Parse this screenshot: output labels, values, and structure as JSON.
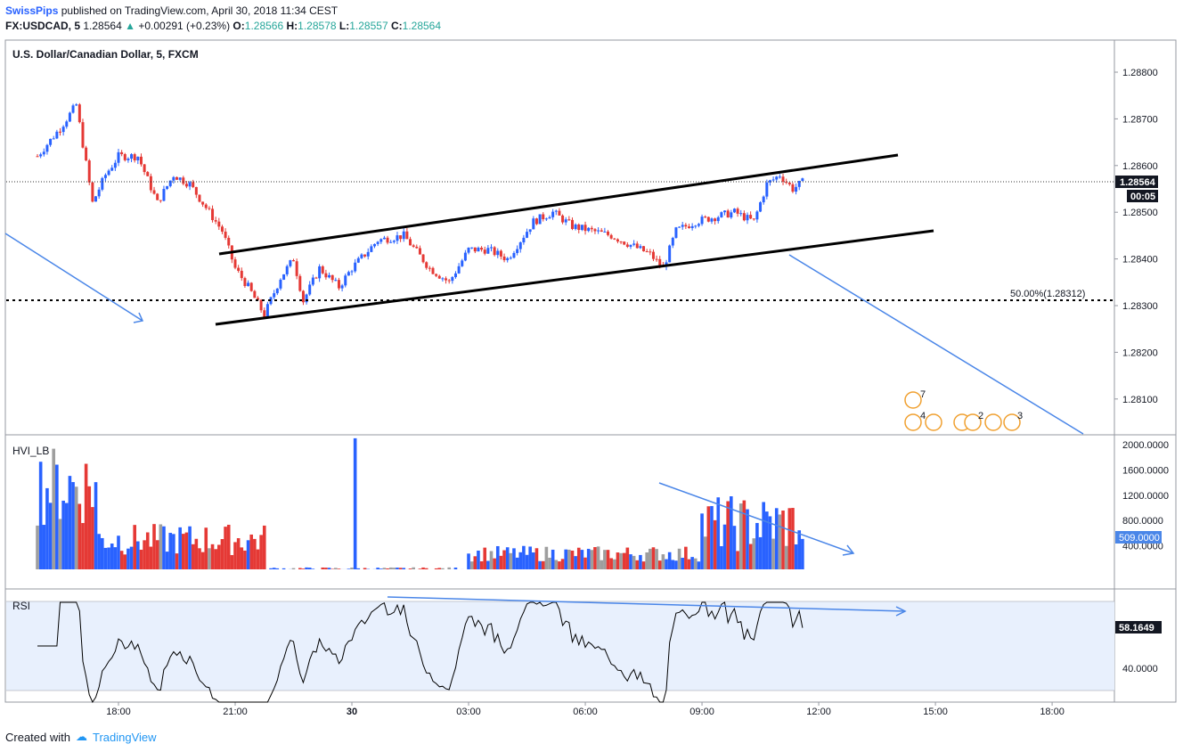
{
  "header": {
    "author": "SwissPips",
    "published": "published on TradingView.com, April 30, 2018 11:34 CEST",
    "symbol": "FX:USDCAD, 5",
    "last": "1.28564",
    "change": "+0.00291 (+0.23%)",
    "open_label": "O:",
    "open": "1.28566",
    "high_label": "H:",
    "high": "1.28578",
    "low_label": "L:",
    "low": "1.28557",
    "close_label": "C:",
    "close": "1.28564"
  },
  "main_pane": {
    "title": "U.S. Dollar/Canadian Dollar, 5, FXCM",
    "price_label": "1.28564",
    "countdown": "00:05",
    "fib_label": "50.00%(1.28312)",
    "event_counts": [
      "7",
      "4",
      "2",
      "3"
    ]
  },
  "volume_pane": {
    "title": "HVI_LB",
    "current_label": "509.0000"
  },
  "rsi_pane": {
    "title": "RSI",
    "current_label": "58.1649"
  },
  "footer": {
    "created": "Created with",
    "brand": "TradingView"
  },
  "colors": {
    "up": "#2962ff",
    "down": "#e53935",
    "neutral": "#9e9e9e",
    "trendline": "#4a86e8",
    "rsi_band": "#e8f0fd"
  },
  "chart_data": [
    {
      "type": "candlestick",
      "title": "U.S. Dollar/Canadian Dollar, 5, FXCM",
      "x_ticks": [
        "18:00",
        "21:00",
        "30",
        "03:00",
        "06:00",
        "09:00",
        "12:00",
        "15:00",
        "18:00"
      ],
      "y_ticks": [
        "1.28800",
        "1.28700",
        "1.28600",
        "1.28500",
        "1.28400",
        "1.28300",
        "1.28200",
        "1.28100"
      ],
      "ylim": [
        1.2798,
        1.2888
      ],
      "close_path": [
        {
          "t": "15:55",
          "y": 1.2862
        },
        {
          "t": "16:30",
          "y": 1.2868
        },
        {
          "t": "16:55",
          "y": 1.2873
        },
        {
          "t": "17:20",
          "y": 1.2852
        },
        {
          "t": "17:40",
          "y": 1.2858
        },
        {
          "t": "18:00",
          "y": 1.2862
        },
        {
          "t": "18:30",
          "y": 1.2862
        },
        {
          "t": "19:00",
          "y": 1.2852
        },
        {
          "t": "19:25",
          "y": 1.2858
        },
        {
          "t": "19:50",
          "y": 1.2856
        },
        {
          "t": "20:10",
          "y": 1.2852
        },
        {
          "t": "20:40",
          "y": 1.2846
        },
        {
          "t": "21:00",
          "y": 1.2838
        },
        {
          "t": "21:20",
          "y": 1.2834
        },
        {
          "t": "21:45",
          "y": 1.2828
        },
        {
          "t": "22:10",
          "y": 1.2836
        },
        {
          "t": "22:30",
          "y": 1.284
        },
        {
          "t": "22:45",
          "y": 1.2831
        },
        {
          "t": "23:10",
          "y": 1.2838
        },
        {
          "t": "23:40",
          "y": 1.2834
        },
        {
          "t": "00:00",
          "y": 1.2838
        },
        {
          "t": "00:40",
          "y": 1.2844
        },
        {
          "t": "01:20",
          "y": 1.2845
        },
        {
          "t": "02:00",
          "y": 1.2838
        },
        {
          "t": "02:30",
          "y": 1.2835
        },
        {
          "t": "03:00",
          "y": 1.2842
        },
        {
          "t": "03:30",
          "y": 1.2842
        },
        {
          "t": "04:00",
          "y": 1.284
        },
        {
          "t": "04:40",
          "y": 1.2848
        },
        {
          "t": "05:10",
          "y": 1.285
        },
        {
          "t": "05:40",
          "y": 1.2847
        },
        {
          "t": "06:10",
          "y": 1.2846
        },
        {
          "t": "06:40",
          "y": 1.2845
        },
        {
          "t": "07:10",
          "y": 1.2843
        },
        {
          "t": "07:40",
          "y": 1.2841
        },
        {
          "t": "08:00",
          "y": 1.2838
        },
        {
          "t": "08:20",
          "y": 1.2846
        },
        {
          "t": "08:50",
          "y": 1.2848
        },
        {
          "t": "09:20",
          "y": 1.2849
        },
        {
          "t": "09:50",
          "y": 1.285
        },
        {
          "t": "10:20",
          "y": 1.2848
        },
        {
          "t": "10:40",
          "y": 1.2856
        },
        {
          "t": "11:00",
          "y": 1.2858
        },
        {
          "t": "11:20",
          "y": 1.2855
        },
        {
          "t": "11:35",
          "y": 1.28564
        }
      ]
    },
    {
      "type": "bar",
      "title": "HVI_LB",
      "y_ticks": [
        "2000.0000",
        "1600.0000",
        "1200.0000",
        "800.0000",
        "400.0000"
      ],
      "ylim": [
        0,
        2100
      ],
      "current": 509.0
    },
    {
      "type": "line",
      "title": "RSI",
      "y_ticks": [
        "58.1649",
        "40.0000"
      ],
      "ylim": [
        20,
        80
      ],
      "band": [
        30,
        70
      ],
      "current": 58.1649
    }
  ]
}
